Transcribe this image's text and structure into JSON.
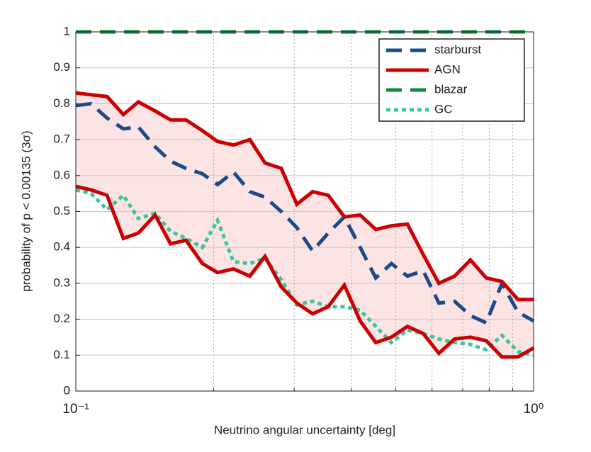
{
  "chart_data": {
    "type": "line",
    "xlabel": "Neutrino angular uncertainty [deg]",
    "ylabel": "probability of p < 0.00135  (3σ)",
    "xscale": "log",
    "x": [
      0.1,
      0.108,
      0.117,
      0.127,
      0.137,
      0.149,
      0.161,
      0.174,
      0.189,
      0.204,
      0.221,
      0.24,
      0.259,
      0.281,
      0.304,
      0.329,
      0.356,
      0.386,
      0.418,
      0.452,
      0.489,
      0.53,
      0.574,
      0.621,
      0.672,
      0.728,
      0.788,
      0.853,
      0.924,
      1.0
    ],
    "series": [
      {
        "name": "starburst",
        "color": "#1a4a8a",
        "dash": "dashed",
        "values": [
          0.795,
          0.8,
          0.76,
          0.73,
          0.735,
          0.68,
          0.64,
          0.62,
          0.605,
          0.575,
          0.61,
          0.555,
          0.54,
          0.5,
          0.455,
          0.39,
          0.44,
          0.485,
          0.4,
          0.315,
          0.355,
          0.32,
          0.335,
          0.245,
          0.25,
          0.21,
          0.19,
          0.3,
          0.22,
          0.195
        ]
      },
      {
        "name": "AGN",
        "color": "#cc0000",
        "dash": "solid",
        "fill": "#fde4e4",
        "values": [
          0.83,
          0.825,
          0.82,
          0.77,
          0.805,
          0.78,
          0.755,
          0.755,
          0.725,
          0.695,
          0.685,
          0.7,
          0.635,
          0.62,
          0.52,
          0.555,
          0.545,
          0.485,
          0.49,
          0.45,
          0.46,
          0.465,
          0.38,
          0.3,
          0.32,
          0.365,
          0.315,
          0.305,
          0.255,
          0.255
        ],
        "lower": [
          0.57,
          0.56,
          0.545,
          0.425,
          0.44,
          0.49,
          0.41,
          0.42,
          0.355,
          0.33,
          0.34,
          0.32,
          0.375,
          0.29,
          0.245,
          0.215,
          0.235,
          0.295,
          0.195,
          0.135,
          0.15,
          0.18,
          0.16,
          0.105,
          0.145,
          0.15,
          0.14,
          0.095,
          0.095,
          0.12
        ]
      },
      {
        "name": "blazar",
        "color": "#12883c",
        "dash": "dashed",
        "values": [
          1,
          1,
          1,
          1,
          1,
          1,
          1,
          1,
          1,
          1,
          1,
          1,
          1,
          1,
          1,
          1,
          1,
          1,
          1,
          1,
          1,
          1,
          1,
          1,
          1,
          1,
          1,
          1,
          1,
          1
        ]
      },
      {
        "name": "GC",
        "color": "#3cc49a",
        "dash": "dotted",
        "values": [
          0.56,
          0.55,
          0.505,
          0.545,
          0.48,
          0.495,
          0.445,
          0.425,
          0.4,
          0.475,
          0.36,
          0.355,
          0.37,
          0.31,
          0.24,
          0.25,
          0.235,
          0.235,
          0.225,
          0.18,
          0.135,
          0.17,
          0.16,
          0.145,
          0.135,
          0.13,
          0.115,
          0.155,
          0.11,
          0.1
        ]
      }
    ],
    "xlim": [
      0.1,
      1
    ],
    "xticks": [
      {
        "value": 0.1,
        "label": "10⁻¹"
      },
      {
        "value": 1,
        "label": "10⁰"
      }
    ],
    "xminor": [
      0.2,
      0.3,
      0.4,
      0.5,
      0.6,
      0.7,
      0.8,
      0.9
    ],
    "ylim": [
      0,
      1
    ],
    "yticks": [
      0,
      0.1,
      0.2,
      0.3,
      0.4,
      0.5,
      0.6,
      0.7,
      0.8,
      0.9,
      1
    ],
    "grid": true,
    "legend": "upper right"
  }
}
